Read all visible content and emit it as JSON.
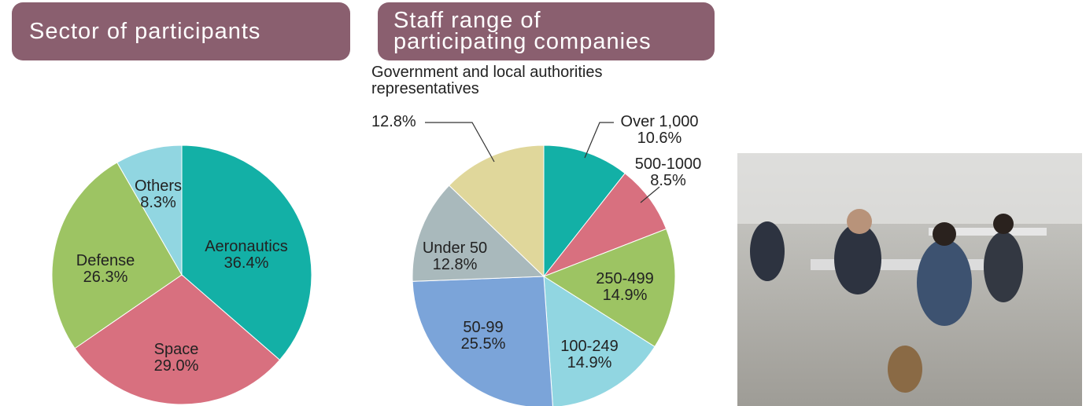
{
  "chart_data": [
    {
      "type": "pie",
      "title": "Sector of participants",
      "categories": [
        "Aeronautics",
        "Space",
        "Defense",
        "Others"
      ],
      "values": [
        36.4,
        29.0,
        26.3,
        8.3
      ],
      "value_labels": [
        "36.4%",
        "29.0%",
        "26.3%",
        "8.3%"
      ],
      "colors": [
        "#13b0a6",
        "#d8707f",
        "#9dc463",
        "#91d6e1"
      ]
    },
    {
      "type": "pie",
      "title": "Staff range of participating companies",
      "categories": [
        "Over 1,000",
        "500-1000",
        "250-499",
        "100-249",
        "50-99",
        "Under 50",
        "Government and local authorities representatives"
      ],
      "values": [
        10.6,
        8.5,
        14.9,
        14.9,
        25.5,
        12.8,
        12.8
      ],
      "value_labels": [
        "10.6%",
        "8.5%",
        "14.9%",
        "14.9%",
        "25.5%",
        "12.8%",
        "12.8%"
      ],
      "colors": [
        "#13b0a6",
        "#d8707f",
        "#9dc463",
        "#91d6e1",
        "#7ba4d9",
        "#a9b9bc",
        "#e0d79b"
      ]
    }
  ]
}
